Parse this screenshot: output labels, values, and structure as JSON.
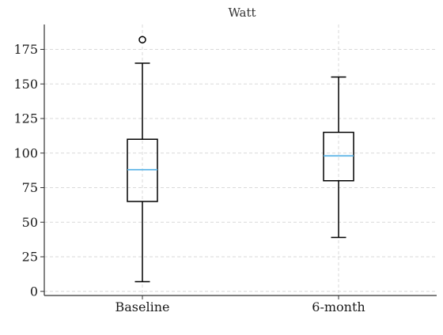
{
  "chart_data": {
    "type": "box",
    "title": "Watt",
    "xlabel": "",
    "ylabel": "",
    "categories": [
      "Baseline",
      "6-month"
    ],
    "boxes": [
      {
        "category": "Baseline",
        "whisker_low": 7,
        "q1": 65,
        "median": 88,
        "q3": 110,
        "whisker_high": 165,
        "outliers": [
          182
        ]
      },
      {
        "category": "6-month",
        "whisker_low": 39,
        "q1": 80,
        "median": 98,
        "q3": 115,
        "whisker_high": 155,
        "outliers": []
      }
    ],
    "ylim": [
      -3,
      193
    ],
    "yticks": [
      0,
      25,
      50,
      75,
      100,
      125,
      150,
      175
    ],
    "grid": true,
    "colors": {
      "box": "#000000",
      "median": "#5ab4e6",
      "grid": "#d9d9d9"
    }
  }
}
